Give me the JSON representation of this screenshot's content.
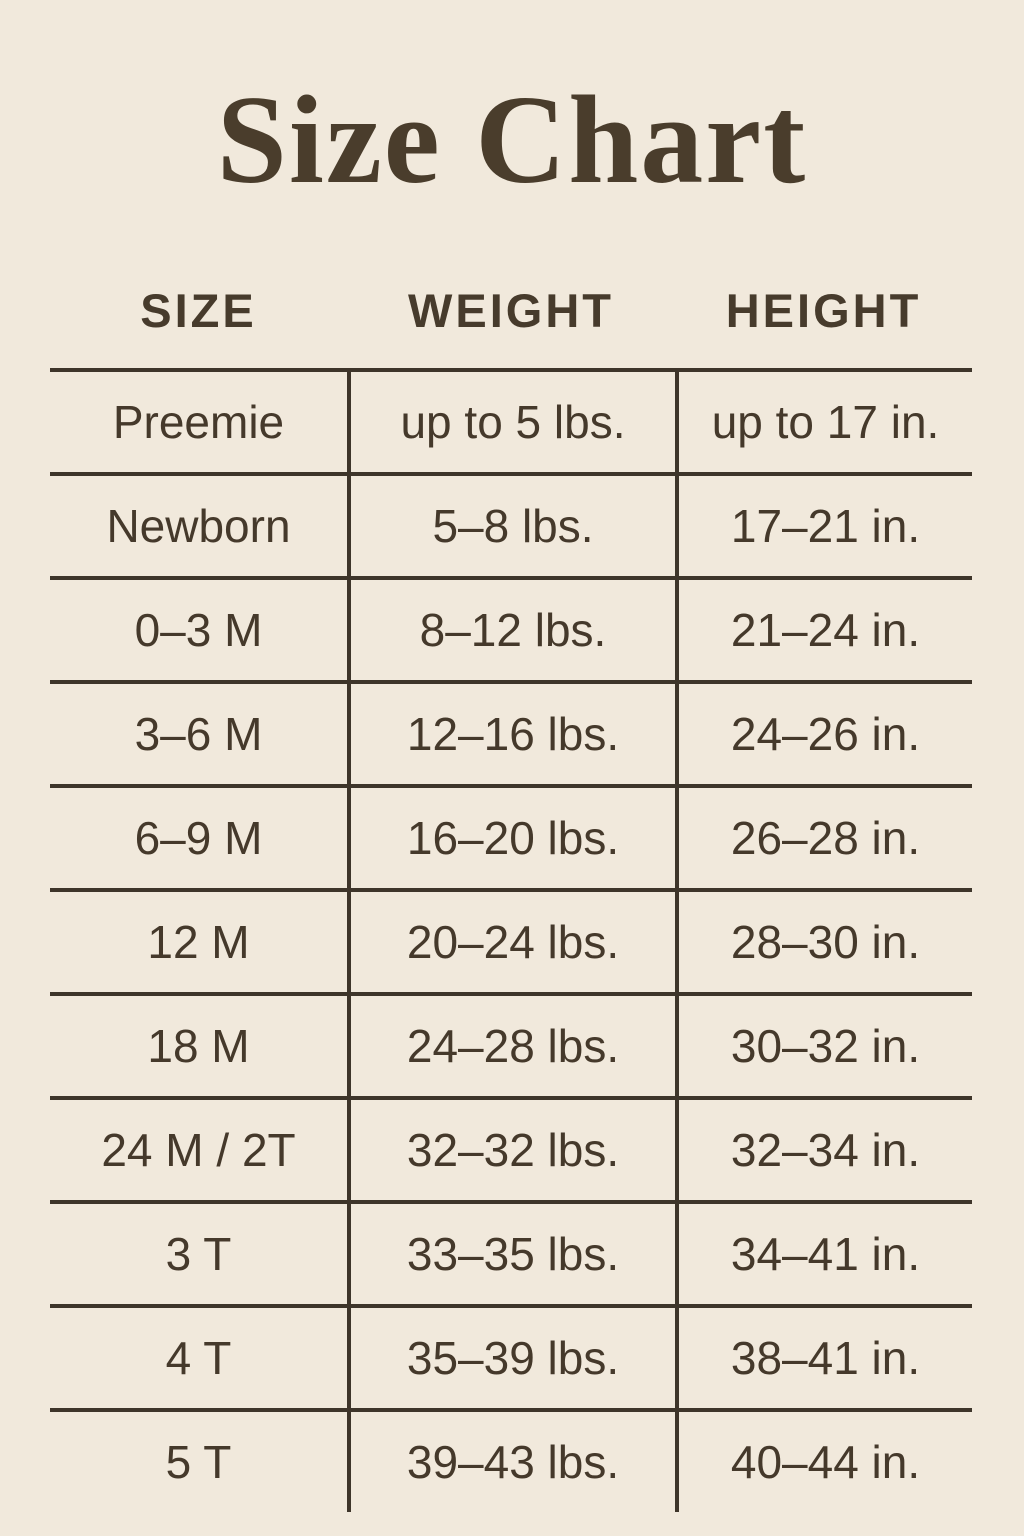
{
  "page": {
    "title": "Size Chart"
  },
  "colors": {
    "background": "#f1e9dc",
    "ink": "#45392b",
    "line": "#3e352a"
  },
  "chart_data": {
    "type": "table",
    "title": "Size Chart",
    "columns": [
      "SIZE",
      "WEIGHT",
      "HEIGHT"
    ],
    "rows": [
      {
        "size": "Preemie",
        "weight": "up to 5 lbs.",
        "height": "up to 17 in."
      },
      {
        "size": "Newborn",
        "weight": "5–8 lbs.",
        "height": "17–21 in."
      },
      {
        "size": "0–3 M",
        "weight": "8–12 lbs.",
        "height": "21–24 in."
      },
      {
        "size": "3–6 M",
        "weight": "12–16 lbs.",
        "height": "24–26 in."
      },
      {
        "size": "6–9 M",
        "weight": "16–20 lbs.",
        "height": "26–28 in."
      },
      {
        "size": "12 M",
        "weight": "20–24 lbs.",
        "height": "28–30 in."
      },
      {
        "size": "18 M",
        "weight": "24–28 lbs.",
        "height": "30–32 in."
      },
      {
        "size": "24 M / 2T",
        "weight": "32–32 lbs.",
        "height": "32–34 in."
      },
      {
        "size": "3 T",
        "weight": "33–35 lbs.",
        "height": "34–41 in."
      },
      {
        "size": "4 T",
        "weight": "35–39 lbs.",
        "height": "38–41 in."
      },
      {
        "size": "5 T",
        "weight": "39–43 lbs.",
        "height": "40–44 in."
      }
    ]
  }
}
